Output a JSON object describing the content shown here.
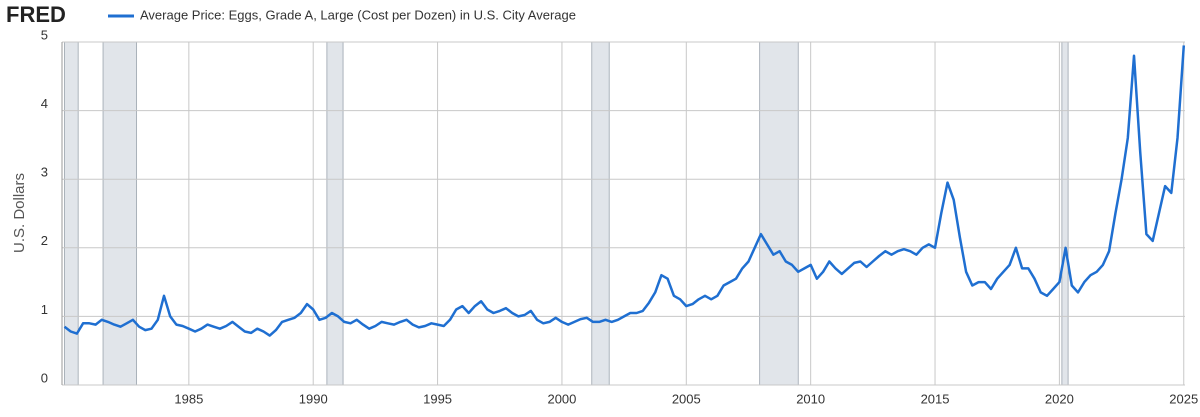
{
  "logo": "FRED",
  "chart_data": {
    "type": "line",
    "ylabel": "U.S. Dollars",
    "series": [
      {
        "name": "Average Price: Eggs, Grade A, Large (Cost per Dozen) in U.S. City Average",
        "color": "#1f6fd1",
        "values": [
          0.85,
          0.78,
          0.75,
          0.9,
          0.9,
          0.88,
          0.95,
          0.92,
          0.88,
          0.85,
          0.9,
          0.95,
          0.85,
          0.8,
          0.82,
          0.95,
          1.3,
          1.0,
          0.88,
          0.86,
          0.82,
          0.78,
          0.82,
          0.88,
          0.85,
          0.82,
          0.86,
          0.92,
          0.85,
          0.78,
          0.76,
          0.82,
          0.78,
          0.72,
          0.8,
          0.92,
          0.95,
          0.98,
          1.05,
          1.18,
          1.1,
          0.95,
          0.98,
          1.05,
          1.0,
          0.92,
          0.9,
          0.95,
          0.88,
          0.82,
          0.86,
          0.92,
          0.9,
          0.88,
          0.92,
          0.95,
          0.88,
          0.84,
          0.86,
          0.9,
          0.88,
          0.86,
          0.95,
          1.1,
          1.15,
          1.05,
          1.15,
          1.22,
          1.1,
          1.05,
          1.08,
          1.12,
          1.05,
          1.0,
          1.02,
          1.08,
          0.95,
          0.9,
          0.92,
          0.98,
          0.92,
          0.88,
          0.92,
          0.96,
          0.98,
          0.92,
          0.92,
          0.95,
          0.92,
          0.95,
          1.0,
          1.05,
          1.05,
          1.08,
          1.2,
          1.35,
          1.6,
          1.55,
          1.3,
          1.25,
          1.15,
          1.18,
          1.25,
          1.3,
          1.25,
          1.3,
          1.45,
          1.5,
          1.55,
          1.7,
          1.8,
          2.0,
          2.2,
          2.05,
          1.9,
          1.95,
          1.8,
          1.75,
          1.65,
          1.7,
          1.75,
          1.55,
          1.65,
          1.8,
          1.7,
          1.62,
          1.7,
          1.78,
          1.8,
          1.72,
          1.8,
          1.88,
          1.95,
          1.9,
          1.95,
          1.98,
          1.95,
          1.9,
          2.0,
          2.05,
          2.0,
          2.5,
          2.95,
          2.7,
          2.15,
          1.65,
          1.45,
          1.5,
          1.5,
          1.4,
          1.55,
          1.65,
          1.75,
          2.0,
          1.7,
          1.7,
          1.55,
          1.35,
          1.3,
          1.4,
          1.5,
          2.0,
          1.45,
          1.35,
          1.5,
          1.6,
          1.65,
          1.75,
          1.95,
          2.5,
          3.0,
          3.6,
          4.8,
          3.4,
          2.2,
          2.1,
          2.5,
          2.9,
          2.8,
          3.6,
          4.95
        ]
      }
    ],
    "x": [
      1980,
      1980.25,
      1980.5,
      1980.75,
      1981,
      1981.25,
      1981.5,
      1981.75,
      1982,
      1982.25,
      1982.5,
      1982.75,
      1983,
      1983.25,
      1983.5,
      1983.75,
      1984,
      1984.25,
      1984.5,
      1984.75,
      1985,
      1985.25,
      1985.5,
      1985.75,
      1986,
      1986.25,
      1986.5,
      1986.75,
      1987,
      1987.25,
      1987.5,
      1987.75,
      1988,
      1988.25,
      1988.5,
      1988.75,
      1989,
      1989.25,
      1989.5,
      1989.75,
      1990,
      1990.25,
      1990.5,
      1990.75,
      1991,
      1991.25,
      1991.5,
      1991.75,
      1992,
      1992.25,
      1992.5,
      1992.75,
      1993,
      1993.25,
      1993.5,
      1993.75,
      1994,
      1994.25,
      1994.5,
      1994.75,
      1995,
      1995.25,
      1995.5,
      1995.75,
      1996,
      1996.25,
      1996.5,
      1996.75,
      1997,
      1997.25,
      1997.5,
      1997.75,
      1998,
      1998.25,
      1998.5,
      1998.75,
      1999,
      1999.25,
      1999.5,
      1999.75,
      2000,
      2000.25,
      2000.5,
      2000.75,
      2001,
      2001.25,
      2001.5,
      2001.75,
      2002,
      2002.25,
      2002.5,
      2002.75,
      2003,
      2003.25,
      2003.5,
      2003.75,
      2004,
      2004.25,
      2004.5,
      2004.75,
      2005,
      2005.25,
      2005.5,
      2005.75,
      2006,
      2006.25,
      2006.5,
      2006.75,
      2007,
      2007.25,
      2007.5,
      2007.75,
      2008,
      2008.25,
      2008.5,
      2008.75,
      2009,
      2009.25,
      2009.5,
      2009.75,
      2010,
      2010.25,
      2010.5,
      2010.75,
      2011,
      2011.25,
      2011.5,
      2011.75,
      2012,
      2012.25,
      2012.5,
      2012.75,
      2013,
      2013.25,
      2013.5,
      2013.75,
      2014,
      2014.25,
      2014.5,
      2014.75,
      2015,
      2015.25,
      2015.5,
      2015.75,
      2016,
      2016.25,
      2016.5,
      2016.75,
      2017,
      2017.25,
      2017.5,
      2017.75,
      2018,
      2018.25,
      2018.5,
      2018.75,
      2019,
      2019.25,
      2019.5,
      2019.75,
      2020,
      2020.25,
      2020.5,
      2020.75,
      2021,
      2021.25,
      2021.5,
      2021.75,
      2022,
      2022.25,
      2022.5,
      2022.75,
      2023,
      2023.25,
      2023.5,
      2023.75,
      2024,
      2024.25,
      2024.5,
      2024.75,
      2025
    ],
    "recessions": [
      [
        1980.0,
        1980.55
      ],
      [
        1981.55,
        1982.9
      ],
      [
        1990.55,
        1991.2
      ],
      [
        2001.2,
        2001.9
      ],
      [
        2007.95,
        2009.5
      ],
      [
        2020.1,
        2020.35
      ]
    ],
    "xlim": [
      1979.9,
      2025.05
    ],
    "xticks": [
      1985,
      1990,
      1995,
      2000,
      2005,
      2010,
      2015,
      2020,
      2025
    ],
    "ylim": [
      0,
      5
    ],
    "yticks": [
      0,
      1,
      2,
      3,
      4,
      5
    ],
    "grid": true
  }
}
